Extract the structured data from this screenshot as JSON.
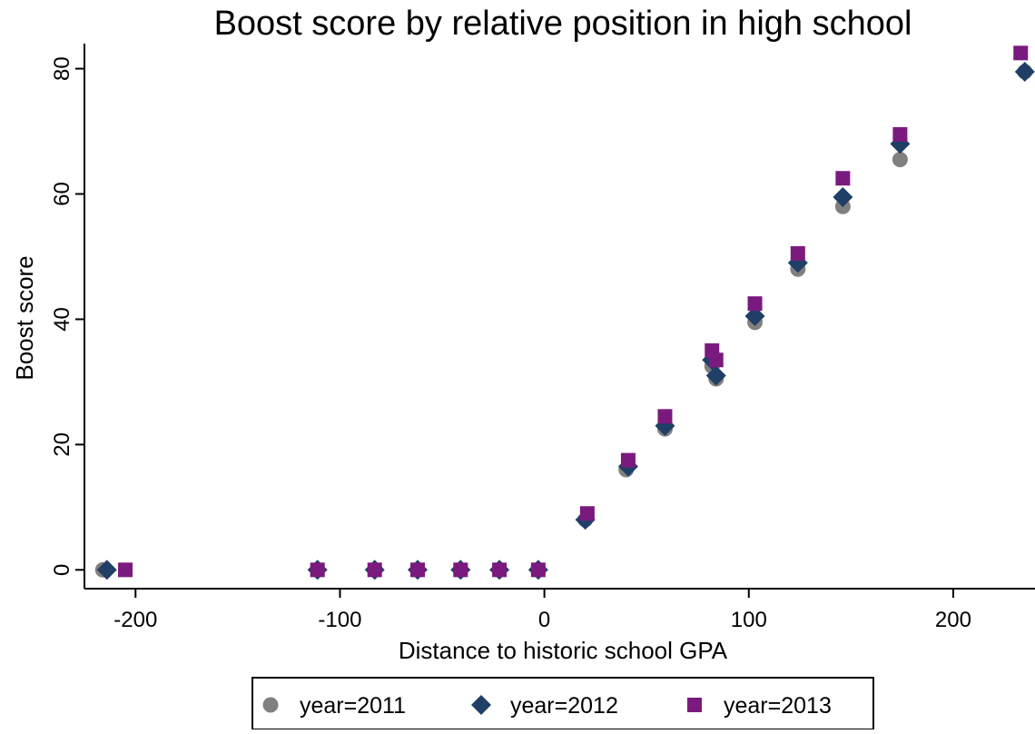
{
  "chart_data": {
    "type": "scatter",
    "title": "Boost score by relative position in high school",
    "xlabel": "Distance to historic school GPA",
    "ylabel": "Boost score",
    "xlim": [
      -225,
      240
    ],
    "ylim": [
      -3,
      84
    ],
    "xticks": [
      -200,
      -100,
      0,
      100,
      200
    ],
    "yticks": [
      0,
      20,
      40,
      60,
      80
    ],
    "xtick_labels": [
      "-200",
      "-100",
      "0",
      "100",
      "200"
    ],
    "ytick_labels": [
      "0",
      "20",
      "40",
      "60",
      "80"
    ],
    "grid": false,
    "legend_position": "bottom",
    "series": [
      {
        "name": "year=2011",
        "marker": "circle",
        "color": "#808080",
        "points": [
          [
            -216,
            0
          ],
          [
            -111,
            0
          ],
          [
            -83,
            0
          ],
          [
            -62,
            0
          ],
          [
            -41,
            0
          ],
          [
            -22,
            0
          ],
          [
            -3,
            0
          ],
          [
            20,
            8
          ],
          [
            40,
            16
          ],
          [
            59,
            22.5
          ],
          [
            82,
            32.5
          ],
          [
            84,
            30.5
          ],
          [
            103,
            39.5
          ],
          [
            124,
            48
          ],
          [
            146,
            58
          ],
          [
            174,
            65.5
          ],
          [
            235,
            79.5
          ]
        ]
      },
      {
        "name": "year=2012",
        "marker": "diamond",
        "color": "#1f3f66",
        "points": [
          [
            -214,
            0
          ],
          [
            -111,
            0
          ],
          [
            -83,
            0
          ],
          [
            -62,
            0
          ],
          [
            -41,
            0
          ],
          [
            -22,
            0
          ],
          [
            -3,
            0
          ],
          [
            20,
            8
          ],
          [
            41,
            16.5
          ],
          [
            59,
            23
          ],
          [
            82,
            33.5
          ],
          [
            84,
            31
          ],
          [
            103,
            40.5
          ],
          [
            124,
            49
          ],
          [
            146,
            59.5
          ],
          [
            174,
            68
          ],
          [
            235,
            79.5
          ]
        ]
      },
      {
        "name": "year=2013",
        "marker": "square",
        "color": "#7b1a7e",
        "points": [
          [
            -205,
            0
          ],
          [
            -111,
            0
          ],
          [
            -83,
            0
          ],
          [
            -62,
            0
          ],
          [
            -41,
            0
          ],
          [
            -22,
            0
          ],
          [
            -3,
            0
          ],
          [
            21,
            9
          ],
          [
            41,
            17.5
          ],
          [
            59,
            24.5
          ],
          [
            82,
            35
          ],
          [
            84,
            33.5
          ],
          [
            103,
            42.5
          ],
          [
            124,
            50.5
          ],
          [
            146,
            62.5
          ],
          [
            174,
            69.5
          ],
          [
            233,
            82.5
          ]
        ]
      }
    ]
  }
}
